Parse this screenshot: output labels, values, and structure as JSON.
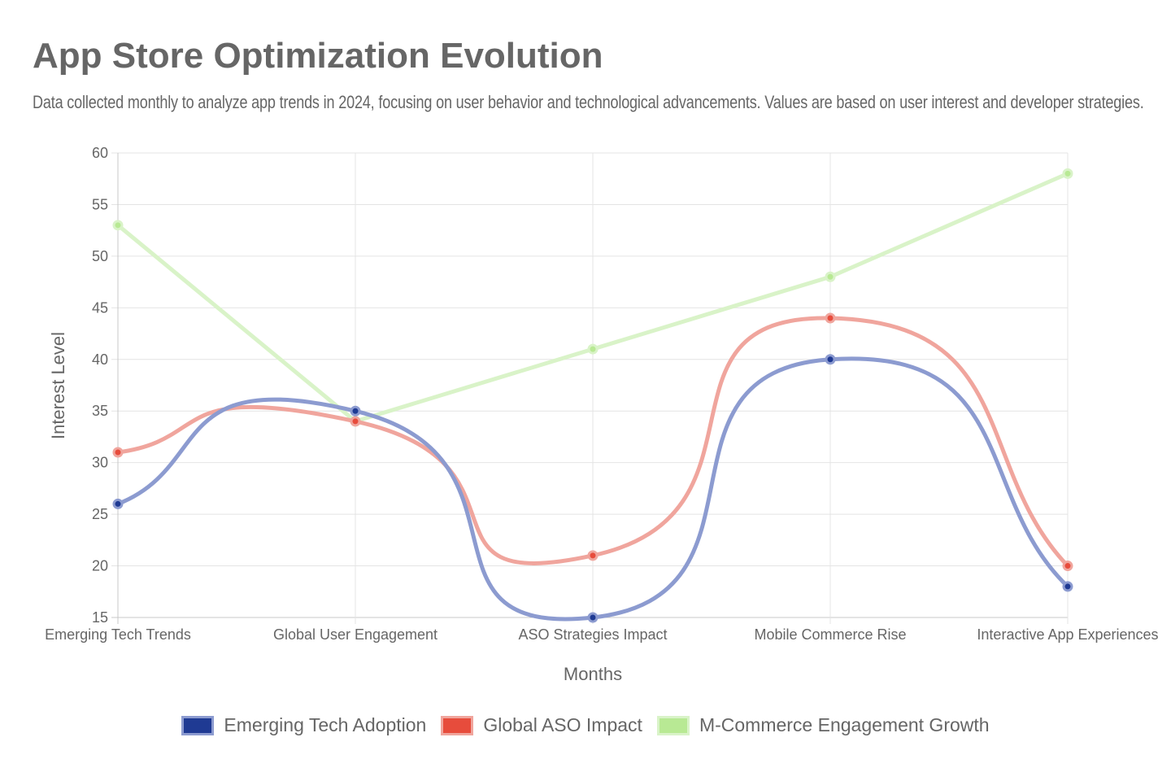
{
  "title": "App Store Optimization Evolution",
  "subtitle": "Data collected monthly to analyze app trends in 2024, focusing on user behavior and technological advancements. Values are based on user interest and developer strategies.",
  "chart_data": {
    "type": "line",
    "title": "App Store Optimization Evolution",
    "subtitle": "Data collected monthly to analyze app trends in 2024, focusing on user behavior and technological advancements. Values are based on user interest and developer strategies.",
    "xlabel": "Months",
    "ylabel": "Interest Level",
    "categories": [
      "Emerging Tech Trends",
      "Global User Engagement",
      "ASO Strategies Impact",
      "Mobile Commerce Rise",
      "Interactive App Experiences"
    ],
    "ylim": [
      15,
      60
    ],
    "yticks": [
      15,
      20,
      25,
      30,
      35,
      40,
      45,
      50,
      55,
      60
    ],
    "grid": true,
    "legend_position": "bottom",
    "series": [
      {
        "name": "Emerging Tech Adoption",
        "color": "#1f3a93",
        "line_color": "#8c9bd0",
        "values": [
          26,
          35,
          15,
          40,
          18
        ],
        "smooth": true
      },
      {
        "name": "Global ASO Impact",
        "color": "#e74c3c",
        "line_color": "#f0a59d",
        "values": [
          31,
          34,
          21,
          44,
          20
        ],
        "smooth": true
      },
      {
        "name": "M-Commerce Engagement Growth",
        "color": "#b8e994",
        "line_color": "#d9f3c8",
        "values": [
          53,
          34,
          41,
          48,
          58
        ],
        "smooth": false
      }
    ]
  }
}
